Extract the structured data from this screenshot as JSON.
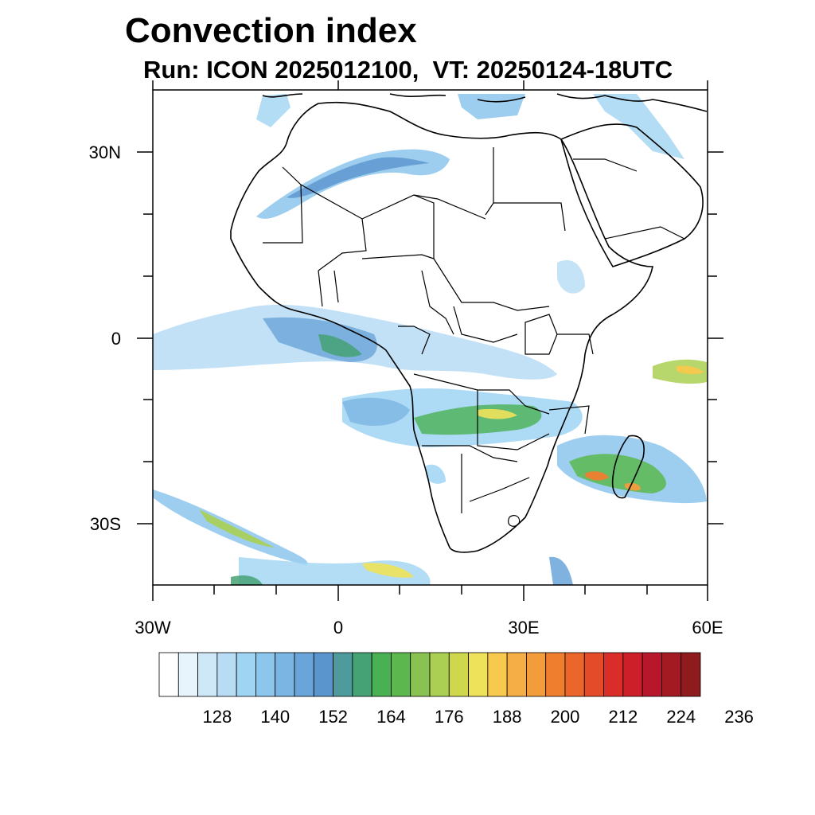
{
  "title": "Convection index",
  "subtitle": "Run: ICON 2025012100,  VT: 20250124-18UTC",
  "axes": {
    "lat_ticks": [
      {
        "label": "30N",
        "value": 30
      },
      {
        "label": "0",
        "value": 0
      },
      {
        "label": "30S",
        "value": -30
      }
    ],
    "lon_ticks": [
      {
        "label": "30W",
        "value": -30
      },
      {
        "label": "0",
        "value": 0
      },
      {
        "label": "30E",
        "value": 30
      },
      {
        "label": "60E",
        "value": 60
      }
    ],
    "lon_range": [
      -30,
      60
    ],
    "lat_range": [
      -40,
      40
    ]
  },
  "colorbar": {
    "colors": [
      "#ffffff",
      "#e8f4fb",
      "#cfe8f7",
      "#b7dcf4",
      "#9fd4f3",
      "#8cc6ec",
      "#7ab5e4",
      "#6aa5d9",
      "#5b95ce",
      "#4f9a9c",
      "#45a275",
      "#4ab054",
      "#5cb84e",
      "#8ac153",
      "#aacf52",
      "#cfd74c",
      "#eee25a",
      "#f7c94d",
      "#f5ae45",
      "#f39c3c",
      "#ef7e2f",
      "#eb662a",
      "#e34b29",
      "#d92d2a",
      "#cc1f2a",
      "#b8172b",
      "#a31a22",
      "#8e1b1e"
    ],
    "labels": [
      "128",
      "140",
      "152",
      "164",
      "176",
      "188",
      "200",
      "212",
      "224",
      "236"
    ]
  }
}
